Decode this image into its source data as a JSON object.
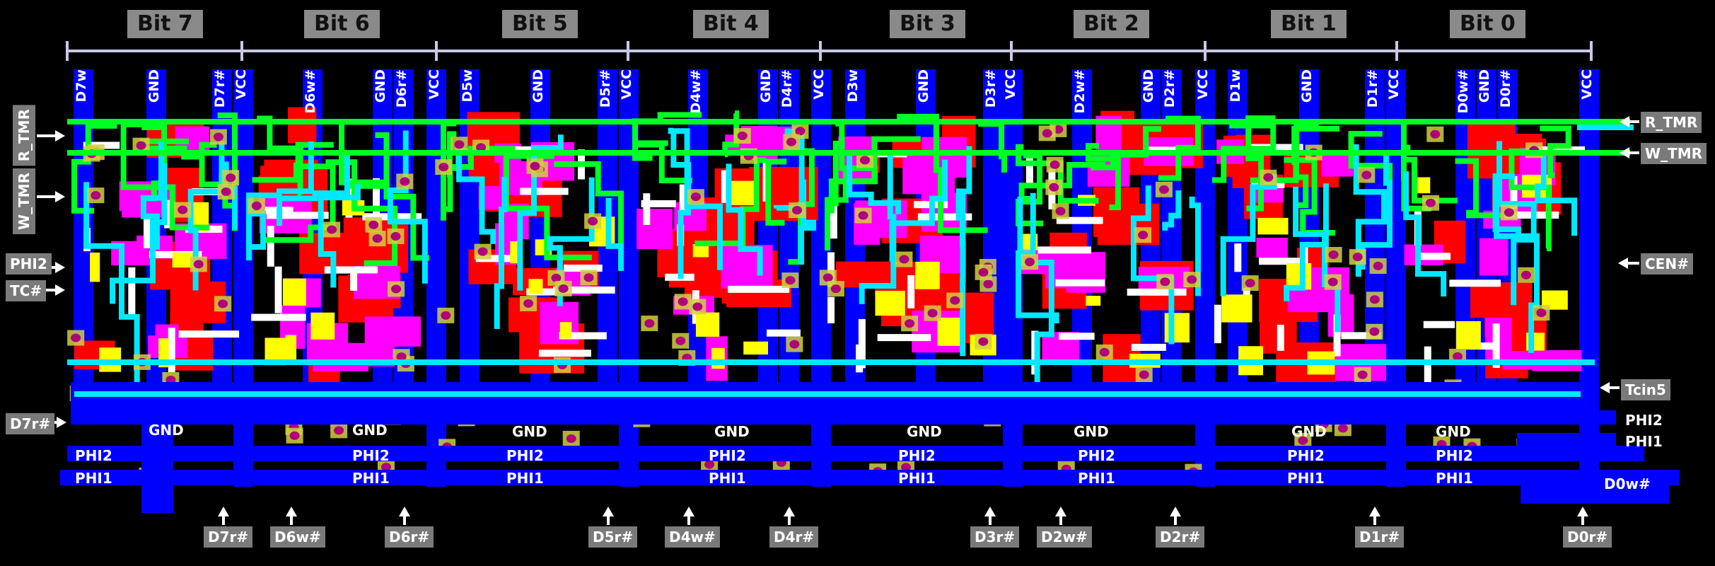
{
  "colors": {
    "metal": "#00e8ff",
    "poly": "#00ff22",
    "diffusion": "#ff0000",
    "buried": "#ff00ff",
    "well": "#0000ff",
    "contact": "#b0007a",
    "label_bg": "#7a7a7a",
    "bit_label_bg": "#8a8a8a"
  },
  "bits": [
    "Bit 7",
    "Bit 6",
    "Bit 5",
    "Bit 4",
    "Bit 3",
    "Bit 2",
    "Bit 1",
    "Bit 0"
  ],
  "top_labels": [
    "D7w",
    "GND",
    "D7r#",
    "VCC",
    "D6w#",
    "GND",
    "D6r#",
    "VCC",
    "D5w",
    "GND",
    "D5r#",
    "VCC",
    "D4w#",
    "GND",
    "D4r#",
    "VCC",
    "D3w",
    "GND",
    "D3r#",
    "VCC",
    "D2w#",
    "GND",
    "D2r#",
    "VCC",
    "D1w",
    "GND",
    "D1r#",
    "VCC",
    "D0w#",
    "GND",
    "D0r#",
    "VCC"
  ],
  "left_labels": {
    "r_tmr": "R_TMR",
    "w_tmr": "W_TMR",
    "phi2": "PHI2",
    "tc": "TC#",
    "d7r": "D7r#"
  },
  "right_labels": {
    "r_tmr": "R_TMR",
    "w_tmr": "W_TMR",
    "cen": "CEN#",
    "tcin5": "Tcin5",
    "phi2": "PHI2",
    "phi1": "PHI1",
    "d0w": "D0w#"
  },
  "bus_labels": {
    "gnd": "GND",
    "phi2": "PHI2",
    "phi1": "PHI1"
  },
  "bottom_labels": [
    "D7r#",
    "D6w#",
    "D6r#",
    "D5r#",
    "D4w#",
    "D4r#",
    "D3r#",
    "D2w#",
    "D2r#",
    "D1r#",
    "D0r#"
  ]
}
